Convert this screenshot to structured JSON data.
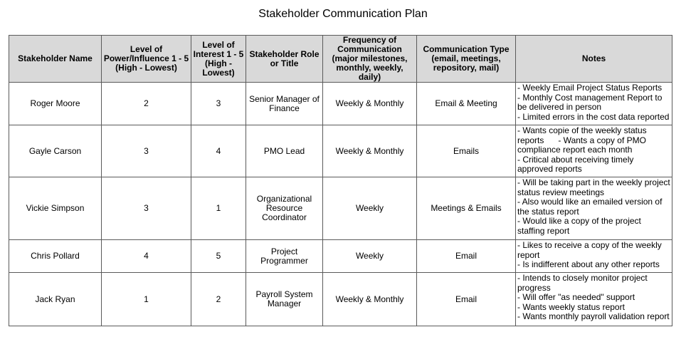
{
  "page": {
    "title": "Stakeholder Communication Plan"
  },
  "table": {
    "headers": [
      "Stakeholder Name",
      "Level of Power/Influence 1 - 5 (High - Lowest)",
      "Level of Interest 1 - 5 (High - Lowest)",
      "Stakeholder Role or Title",
      "Frequency of Communication (major milestones, monthly, weekly, daily)",
      "Communication Type (email, meetings, repository, mail)",
      "Notes"
    ],
    "rows": [
      {
        "name": "Roger Moore",
        "power": "2",
        "interest": "3",
        "role": "Senior Manager of Finance",
        "frequency": "Weekly & Monthly",
        "type": "Email & Meeting",
        "notes": [
          "- Weekly Email Project Status Reports",
          "- Monthly Cost management Report to be delivered in person",
          "- Limited errors in the cost data reported"
        ]
      },
      {
        "name": "Gayle Carson",
        "power": "3",
        "interest": "4",
        "role": "PMO Lead",
        "frequency": "Weekly & Monthly",
        "type": "Emails",
        "notes": [
          "- Wants copie of the weekly status reports      - Wants a copy of PMO compliance report each month",
          "- Critical about receiving timely approved reports"
        ]
      },
      {
        "name": "Vickie Simpson",
        "power": "3",
        "interest": "1",
        "role": "Organizational Resource Coordinator",
        "frequency": "Weekly",
        "type": "Meetings & Emails",
        "notes": [
          "- Will be taking part in the weekly project status review meetings",
          "- Also would like an emailed version of the status report",
          "- Would like a copy of the project staffing report"
        ]
      },
      {
        "name": "Chris Pollard",
        "power": "4",
        "interest": "5",
        "role": "Project Programmer",
        "frequency": "Weekly",
        "type": "Email",
        "notes": [
          "- Likes to receive a copy of the weekly report",
          "- Is indifferent about any other reports"
        ]
      },
      {
        "name": "Jack Ryan",
        "power": "1",
        "interest": "2",
        "role": "Payroll System Manager",
        "frequency": "Weekly & Monthly",
        "type": "Email",
        "notes": [
          "- Intends to closely monitor project progress",
          "- Will offer \"as needed\" support",
          "- Wants weekly status report",
          "- Wants monthly payroll validation report"
        ]
      }
    ]
  }
}
